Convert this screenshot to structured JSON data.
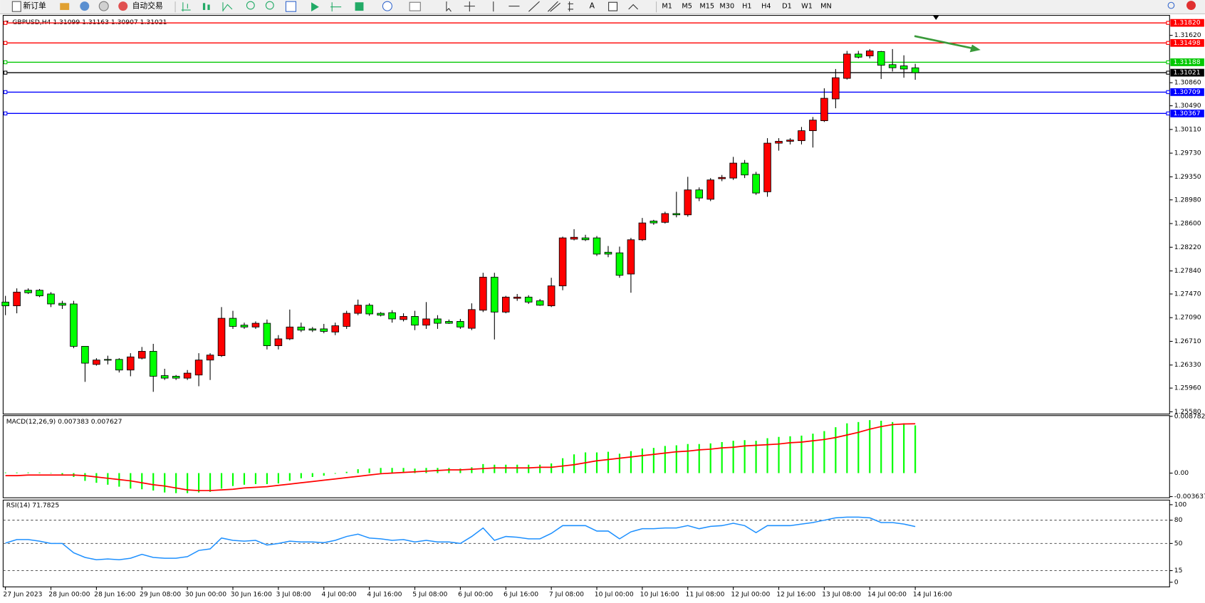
{
  "toolbar": {
    "new_order": "新订单",
    "auto_trading": "自动交易",
    "timeframes": [
      "M1",
      "M5",
      "M15",
      "M30",
      "H1",
      "H4",
      "D1",
      "W1",
      "MN"
    ]
  },
  "chart_data": [
    {
      "type": "candlestick",
      "title": "GBPUSD,H4  1.31099 1.31163 1.30907 1.31021",
      "categories": [
        "27 Jun 2023",
        null,
        null,
        null,
        "28 Jun 00:00",
        null,
        null,
        null,
        "28 Jun 16:00",
        null,
        null,
        null,
        "29 Jun 08:00",
        null,
        null,
        null,
        "30 Jun 00:00",
        null,
        null,
        null,
        "30 Jun 16:00",
        null,
        null,
        null,
        "3 Jul 08:00",
        null,
        null,
        null,
        "4 Jul 00:00",
        null,
        null,
        null,
        "4 Jul 16:00",
        null,
        null,
        null,
        "5 Jul 08:00",
        null,
        null,
        null,
        "6 Jul 00:00",
        null,
        null,
        null,
        "6 Jul 16:00",
        null,
        null,
        null,
        "7 Jul 08:00",
        null,
        null,
        null,
        "10 Jul 00:00",
        null,
        null,
        null,
        "10 Jul 16:00",
        null,
        null,
        null,
        "11 Jul 08:00",
        null,
        null,
        null,
        "12 Jul 00:00",
        null,
        null,
        null,
        "12 Jul 16:00",
        null,
        null,
        null,
        "13 Jul 08:00",
        null,
        null,
        null,
        "14 Jul 00:00",
        null,
        null,
        null,
        "14 Jul 16:00"
      ],
      "open": [
        1.2734,
        1.2728,
        1.2753,
        1.2753,
        1.2747,
        1.2732,
        1.2731,
        1.2663,
        1.2634,
        1.2642,
        1.2642,
        1.2625,
        1.2644,
        1.2655,
        1.2616,
        1.2615,
        1.2612,
        1.2617,
        1.2641,
        1.2648,
        1.2708,
        1.2697,
        1.2694,
        1.27,
        1.2664,
        1.2675,
        1.2694,
        1.2691,
        1.2691,
        1.2686,
        1.2695,
        1.2716,
        1.2729,
        1.2716,
        1.2717,
        1.2706,
        1.2711,
        1.2697,
        1.2707,
        1.2703,
        1.2703,
        1.2692,
        1.2721,
        1.2774,
        1.2718,
        1.274,
        1.2742,
        1.2736,
        1.2728,
        1.276,
        1.2835,
        1.2837,
        1.2837,
        1.2814,
        1.2813,
        1.2779,
        1.2834,
        1.2864,
        1.2862,
        1.2876,
        1.2874,
        1.2914,
        1.2899,
        1.2932,
        1.2933,
        1.2957,
        1.2939,
        1.2911,
        1.2989,
        1.2992,
        1.2993,
        1.3009,
        1.3025,
        1.306,
        1.3093,
        1.3132,
        1.3129,
        1.3136,
        1.3115,
        1.3113,
        1.31099
      ],
      "high": [
        1.2744,
        1.2756,
        1.2756,
        1.2755,
        1.275,
        1.2736,
        1.2736,
        1.2663,
        1.2644,
        1.2648,
        1.2644,
        1.2652,
        1.2662,
        1.2667,
        1.2627,
        1.2617,
        1.2625,
        1.2652,
        1.2652,
        1.2726,
        1.272,
        1.2701,
        1.2703,
        1.2706,
        1.2681,
        1.2722,
        1.2701,
        1.2694,
        1.2699,
        1.2701,
        1.272,
        1.2738,
        1.2732,
        1.2718,
        1.2721,
        1.2716,
        1.272,
        1.2734,
        1.2713,
        1.2706,
        1.2707,
        1.2732,
        1.2781,
        1.2781,
        1.2744,
        1.2747,
        1.2745,
        1.2739,
        1.2773,
        1.2839,
        1.2851,
        1.2842,
        1.284,
        1.2824,
        1.2823,
        1.2837,
        1.2869,
        1.2866,
        1.2879,
        1.2911,
        1.2935,
        1.2918,
        1.2933,
        1.2938,
        1.2967,
        1.2962,
        1.2943,
        1.2997,
        1.2997,
        1.2997,
        1.3015,
        1.3031,
        1.3077,
        1.3108,
        1.3137,
        1.3137,
        1.314,
        1.3137,
        1.314,
        1.313,
        1.31163
      ],
      "low": [
        1.2713,
        1.2716,
        1.2747,
        1.2742,
        1.2726,
        1.2723,
        1.266,
        1.2606,
        1.2632,
        1.2634,
        1.2621,
        1.2615,
        1.2642,
        1.259,
        1.2609,
        1.2609,
        1.2609,
        1.2599,
        1.2609,
        1.2646,
        1.2691,
        1.2691,
        1.2691,
        1.2658,
        1.2658,
        1.2673,
        1.2686,
        1.2686,
        1.2684,
        1.2681,
        1.2691,
        1.2713,
        1.2712,
        1.2711,
        1.2701,
        1.2703,
        1.2689,
        1.2691,
        1.2691,
        1.2699,
        1.2691,
        1.2689,
        1.2718,
        1.2674,
        1.2716,
        1.2736,
        1.2731,
        1.2728,
        1.2726,
        1.2753,
        1.2833,
        1.2832,
        1.2808,
        1.2806,
        1.2773,
        1.2749,
        1.2832,
        1.2858,
        1.286,
        1.287,
        1.2871,
        1.2896,
        1.2896,
        1.2928,
        1.293,
        1.2933,
        1.2906,
        1.2903,
        1.2977,
        1.2987,
        1.2987,
        1.2982,
        1.3023,
        1.3045,
        1.3091,
        1.3125,
        1.3125,
        1.3092,
        1.3104,
        1.3094,
        1.30907
      ],
      "close": [
        1.2728,
        1.275,
        1.2749,
        1.2744,
        1.2731,
        1.2729,
        1.2663,
        1.2636,
        1.2641,
        1.2641,
        1.2625,
        1.2646,
        1.2655,
        1.2615,
        1.2612,
        1.2612,
        1.262,
        1.2641,
        1.2649,
        1.2708,
        1.2695,
        1.2694,
        1.27,
        1.2664,
        1.2675,
        1.2694,
        1.2689,
        1.2689,
        1.2687,
        1.2696,
        1.2716,
        1.2729,
        1.2715,
        1.2713,
        1.2707,
        1.2711,
        1.2697,
        1.2707,
        1.27,
        1.27,
        1.2694,
        1.2722,
        1.2774,
        1.2718,
        1.2742,
        1.2742,
        1.2734,
        1.2729,
        1.276,
        1.2837,
        1.2838,
        1.2834,
        1.2811,
        1.2811,
        1.2777,
        1.2834,
        1.2861,
        1.2861,
        1.2876,
        1.2874,
        1.2914,
        1.2901,
        1.293,
        1.2934,
        1.2957,
        1.2938,
        1.2909,
        1.2989,
        1.2992,
        1.2994,
        1.3009,
        1.3026,
        1.3061,
        1.3094,
        1.3132,
        1.3127,
        1.3137,
        1.3114,
        1.311,
        1.3108,
        1.31021
      ],
      "up_color": "#ff0000",
      "down_color": "#00ff00",
      "ylim": [
        1.25556,
        1.31916
      ],
      "yticks": [
        {
          "value": 1.3162,
          "label": "1.31620"
        },
        {
          "value": 1.3086,
          "label": "1.30860"
        },
        {
          "value": 1.3049,
          "label": "1.30490"
        },
        {
          "value": 1.3011,
          "label": "1.30110"
        },
        {
          "value": 1.2973,
          "label": "1.29730"
        },
        {
          "value": 1.2935,
          "label": "1.29350"
        },
        {
          "value": 1.2898,
          "label": "1.28980"
        },
        {
          "value": 1.286,
          "label": "1.28600"
        },
        {
          "value": 1.2822,
          "label": "1.28220"
        },
        {
          "value": 1.2784,
          "label": "1.27840"
        },
        {
          "value": 1.2747,
          "label": "1.27470"
        },
        {
          "value": 1.2709,
          "label": "1.27090"
        },
        {
          "value": 1.2671,
          "label": "1.26710"
        },
        {
          "value": 1.2633,
          "label": "1.26330"
        },
        {
          "value": 1.2596,
          "label": "1.25960"
        },
        {
          "value": 1.2558,
          "label": "1.25580"
        }
      ],
      "levels": [
        {
          "value": 1.3182,
          "label": "1.31820",
          "color": "#ff0000"
        },
        {
          "value": 1.31498,
          "label": "1.31498",
          "color": "#ff0000"
        },
        {
          "value": 1.31188,
          "label": "1.31188",
          "color": "#00c800"
        },
        {
          "value": 1.31021,
          "label": "1.31021",
          "color": "#000000"
        },
        {
          "value": 1.30709,
          "label": "1.30709",
          "color": "#0000ff"
        },
        {
          "value": 1.30367,
          "label": "1.30367",
          "color": "#0000ff"
        }
      ]
    },
    {
      "type": "macd",
      "title": "MACD(12,26,9) 0.007383 0.007627",
      "histogram": {
        "color": "#00ff00",
        "values": [
          0.0001,
          0.0001,
          0.0001,
          0.0001,
          0.0,
          -0.0002,
          -0.0006,
          -0.0012,
          -0.0015,
          -0.0018,
          -0.0021,
          -0.0024,
          -0.0025,
          -0.0027,
          -0.003,
          -0.0031,
          -0.0031,
          -0.003,
          -0.0029,
          -0.0024,
          -0.002,
          -0.0018,
          -0.0017,
          -0.0017,
          -0.0016,
          -0.0012,
          -0.0008,
          -0.0006,
          -0.0004,
          -0.0001,
          0.0002,
          0.0006,
          0.0007,
          0.0008,
          0.0008,
          0.0008,
          0.0007,
          0.0008,
          0.0008,
          0.0008,
          0.0007,
          0.0009,
          0.0014,
          0.0013,
          0.0013,
          0.0013,
          0.0013,
          0.0013,
          0.0015,
          0.0023,
          0.0029,
          0.0032,
          0.0032,
          0.0033,
          0.003,
          0.0034,
          0.0038,
          0.0039,
          0.0042,
          0.0043,
          0.0045,
          0.0045,
          0.0046,
          0.0048,
          0.005,
          0.0051,
          0.005,
          0.0054,
          0.0056,
          0.0057,
          0.0058,
          0.0061,
          0.0065,
          0.0071,
          0.0077,
          0.0079,
          0.0082,
          0.0081,
          0.0079,
          0.0077,
          0.007383
        ]
      },
      "signal": {
        "color": "#ff0000",
        "values": [
          -0.0004,
          -0.0004,
          -0.0003,
          -0.0003,
          -0.0003,
          -0.0003,
          -0.0003,
          -0.0004,
          -0.0006,
          -0.0008,
          -0.001,
          -0.0012,
          -0.0015,
          -0.0018,
          -0.002,
          -0.0023,
          -0.0026,
          -0.0027,
          -0.0027,
          -0.0026,
          -0.0025,
          -0.0023,
          -0.0022,
          -0.0021,
          -0.0019,
          -0.0017,
          -0.0015,
          -0.0013,
          -0.0011,
          -0.0009,
          -0.0007,
          -0.0005,
          -0.0003,
          -0.0001,
          0.0,
          0.0001,
          0.0002,
          0.0003,
          0.0004,
          0.0005,
          0.0005,
          0.0006,
          0.0007,
          0.0008,
          0.0008,
          0.0008,
          0.0008,
          0.0009,
          0.0009,
          0.0011,
          0.0013,
          0.0016,
          0.0019,
          0.0021,
          0.0023,
          0.0025,
          0.0027,
          0.0029,
          0.0031,
          0.0033,
          0.0034,
          0.0036,
          0.0037,
          0.0039,
          0.004,
          0.0042,
          0.0043,
          0.0044,
          0.0045,
          0.0047,
          0.0048,
          0.005,
          0.0052,
          0.0055,
          0.0059,
          0.0063,
          0.0068,
          0.0072,
          0.0075,
          0.0076,
          0.007627
        ]
      },
      "ylim": [
        -0.003637,
        0.008782
      ],
      "yticks": [
        0.008782,
        {
          "value": 0,
          "label": "0.00"
        },
        -0.003637
      ]
    },
    {
      "type": "line",
      "title": "RSI(14) 71.7825",
      "color": "#1e90ff",
      "values": [
        50.5,
        55,
        55,
        53,
        50,
        50,
        38,
        32,
        29,
        30,
        29,
        31,
        36,
        32,
        31,
        31,
        33,
        41,
        43,
        57,
        54,
        53,
        54,
        48,
        50,
        53,
        52,
        52,
        51,
        54,
        59,
        62,
        57,
        56,
        54,
        55,
        52,
        54,
        52,
        52,
        50,
        59,
        70,
        54,
        59,
        58,
        56,
        56,
        63,
        73,
        73,
        73,
        66,
        66,
        56,
        65,
        69,
        69,
        70,
        70,
        73,
        69,
        72,
        73,
        76,
        73,
        64,
        73,
        73,
        73,
        75,
        77,
        80,
        83,
        84,
        84,
        83,
        77,
        77,
        75,
        71.7825
      ],
      "ylim": [
        0,
        100
      ],
      "yticks": [
        100,
        80,
        50,
        15,
        0
      ]
    }
  ]
}
